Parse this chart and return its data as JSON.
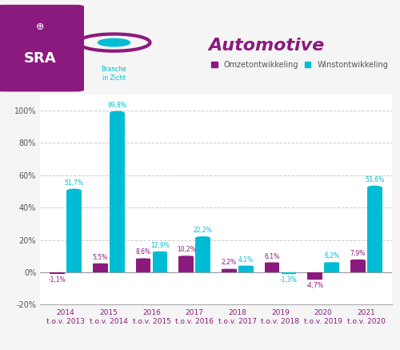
{
  "title": "Automotive",
  "subtitle_line1": "Branche",
  "subtitle_line2": "in Zicht",
  "years": [
    "2014\nt.o.v. 2013",
    "2015\nt.o.v. 2014",
    "2016\nt.o.v. 2015",
    "2017\nt.o.v. 2016",
    "2018\nt.o.v. 2017",
    "2019\nt.o.v. 2018",
    "2020\nt.o.v. 2019",
    "2021\nt.o.v. 2020"
  ],
  "omzet_values": [
    -1.1,
    5.5,
    8.6,
    10.2,
    2.2,
    6.1,
    -4.7,
    7.9
  ],
  "winst_values": [
    51.7,
    99.8,
    12.9,
    22.2,
    4.1,
    -1.3,
    6.2,
    53.6
  ],
  "omzet_labels": [
    "-1,1%",
    "5,5%",
    "8,6%",
    "10,2%",
    "2,2%",
    "6,1%",
    "-4,7%",
    "7,9%"
  ],
  "winst_labels": [
    "51,7%",
    "99,8%",
    "12,9%",
    "22,2%",
    "4,1%",
    "-1,3%",
    "6,2%",
    "53,6%"
  ],
  "omzet_color": "#8B1A7E",
  "winst_color": "#00BCD4",
  "legend_omzet": "Omzetontwikkeling",
  "legend_winst": "Winstontwikkeling",
  "ylim_min": -20,
  "ylim_max": 110,
  "yticks": [
    -20,
    0,
    20,
    40,
    60,
    80,
    100
  ],
  "ytick_labels": [
    "-20%",
    "0%",
    "20%",
    "40%",
    "60%",
    "80%",
    "100%"
  ],
  "bar_width": 0.35,
  "sra_bg_color": "#8B1A7E",
  "title_color": "#8B1A7E",
  "bg_color": "#f5f5f5",
  "chart_bg_color": "#ffffff",
  "grid_color": "#cccccc",
  "axis_label_color": "#8B1A7E",
  "winst_label_color": "#00BCD4",
  "omzet_label_color": "#8B1A7E"
}
